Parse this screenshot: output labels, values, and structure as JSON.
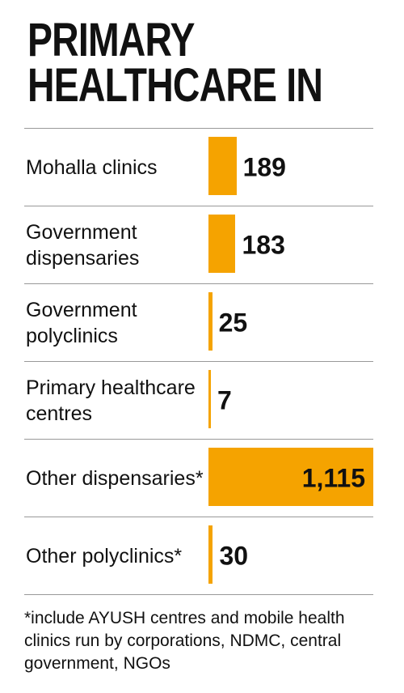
{
  "chart_data": {
    "type": "bar",
    "orientation": "horizontal",
    "title": "PRIMARY HEALTHCARE IN",
    "categories": [
      "Mohalla clinics",
      "Government dispensaries",
      "Government polyclinics",
      "Primary healthcare centres",
      "Other dispensaries*",
      "Other polyclinics*"
    ],
    "values": [
      189,
      183,
      25,
      7,
      1115,
      30
    ],
    "value_labels": [
      "189",
      "183",
      "25",
      "7",
      "1,115",
      "30"
    ],
    "color": "#f5a300",
    "footnote": "*include AYUSH centres and mobile health clinics run by corporations, NDMC, central government, NGOs"
  }
}
